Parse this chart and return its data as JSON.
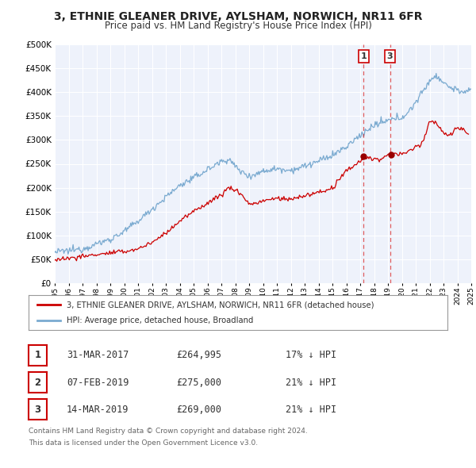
{
  "title": "3, ETHNIE GLEANER DRIVE, AYLSHAM, NORWICH, NR11 6FR",
  "subtitle": "Price paid vs. HM Land Registry's House Price Index (HPI)",
  "legend_line1": "3, ETHNIE GLEANER DRIVE, AYLSHAM, NORWICH, NR11 6FR (detached house)",
  "legend_line2": "HPI: Average price, detached house, Broadland",
  "footer1": "Contains HM Land Registry data © Crown copyright and database right 2024.",
  "footer2": "This data is licensed under the Open Government Licence v3.0.",
  "table": [
    [
      "1",
      "31-MAR-2017",
      "£264,995",
      "17% ↓ HPI"
    ],
    [
      "2",
      "07-FEB-2019",
      "£275,000",
      "21% ↓ HPI"
    ],
    [
      "3",
      "14-MAR-2019",
      "£269,000",
      "21% ↓ HPI"
    ]
  ],
  "background_color": "#ffffff",
  "plot_bg_color": "#eef2fb",
  "grid_color": "#ffffff",
  "red_line_color": "#cc0000",
  "blue_line_color": "#7aaad0",
  "marker_color": "#990000",
  "vline_color": "#dd4444",
  "label_box_color": "#cc0000",
  "marker1_x": 2017.25,
  "marker1_y": 264995,
  "marker2_x": 2019.1,
  "marker2_y": 275000,
  "marker3_x": 2019.2,
  "marker3_y": 269000,
  "vline1_x": 2017.25,
  "vline2_x": 2019.15,
  "ylim": [
    0,
    500000
  ],
  "xlim": [
    1995,
    2025
  ],
  "yticks": [
    0,
    50000,
    100000,
    150000,
    200000,
    250000,
    300000,
    350000,
    400000,
    450000,
    500000
  ]
}
